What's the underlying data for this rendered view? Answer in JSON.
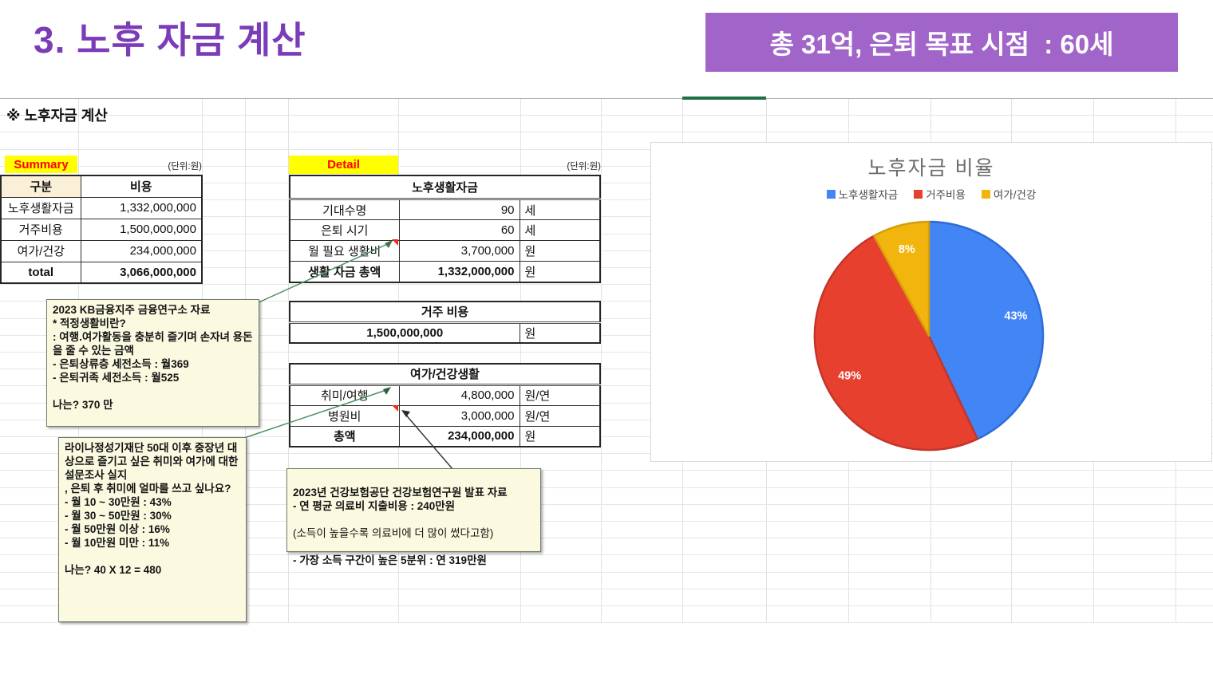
{
  "slide": {
    "title": "3. 노후 자금 계산",
    "banner": "총 31억, 은퇴 목표 시점  : 60세"
  },
  "sheet": {
    "heading": "※ 노후자금 계산",
    "summary": {
      "label": "Summary",
      "unit_note": "(단위:원)",
      "columns": {
        "category": "구분",
        "cost": "비용"
      },
      "rows": [
        {
          "label": "노후생활자금",
          "value": "1,332,000,000"
        },
        {
          "label": "거주비용",
          "value": "1,500,000,000"
        },
        {
          "label": "여가/건강",
          "value": "234,000,000"
        },
        {
          "label": "total",
          "value": "3,066,000,000"
        }
      ]
    },
    "detail": {
      "label": "Detail",
      "unit_note": "(단위:원)",
      "life": {
        "title": "노후생활자금",
        "rows": [
          {
            "label": "기대수명",
            "value": "90",
            "unit": "세"
          },
          {
            "label": "은퇴 시기",
            "value": "60",
            "unit": "세"
          },
          {
            "label": "월 필요 생활비",
            "value": "3,700,000",
            "unit": "원"
          },
          {
            "label": "생활 자금 총액",
            "value": "1,332,000,000",
            "unit": "원"
          }
        ]
      },
      "housing": {
        "title": "거주 비용",
        "value": "1,500,000,000",
        "unit": "원"
      },
      "leisure": {
        "title": "여가/건강생활",
        "rows": [
          {
            "label": "취미/여행",
            "value": "4,800,000",
            "unit": "원/연"
          },
          {
            "label": "병원비",
            "value": "3,000,000",
            "unit": "원/연"
          },
          {
            "label": "총액",
            "value": "234,000,000",
            "unit": "원"
          }
        ]
      }
    },
    "notes": [
      {
        "text": "2023 KB금융지주 금융연구소 자료\n* 적정생활비란?\n: 여행.여가활동을 충분히 즐기며 손자녀 용돈을 줄 수 있는 금액\n- 은퇴상류층 세전소득 : 월369\n- 은퇴귀족 세전소득 : 월525\n\n나는? 370 만"
      },
      {
        "text": "라이나정성기재단 50대 이후 중장년 대상으로 즐기고 싶은 취미와 여가에 대한 설문조사 실지\n, 은퇴 후 취미에 얼마를 쓰고 싶나요?\n- 월 10 ~ 30만원 : 43%\n- 월 30 ~ 50만원 : 30%\n- 월 50만원 이상 : 16%\n- 월 10만원 미만 : 11%\n\n나는? 40 X 12 = 480"
      },
      {
        "text_bold_1": "2023년 건강보험공단 건강보험연구원 발표 자료\n- 연 평균 의료비 지출비용 : 240만원",
        "text_regular": "(소득이 높을수록 의료비에 더 많이 썼다고함)",
        "text_bold_2": "- 가장 소득 구간이 높은 5분위 : 연 319만원"
      }
    ]
  },
  "chart_data": {
    "type": "pie",
    "title": "노후자금 비율",
    "labels": [
      "노후생활자금",
      "거주비용",
      "여가/건강"
    ],
    "values": [
      43,
      49,
      8
    ],
    "data_labels": [
      "43%",
      "49%",
      "8%"
    ],
    "colors": [
      "#4285F4",
      "#E8402F",
      "#F2B50E"
    ],
    "stroke_colors": [
      "#2F6BD8",
      "#C2352A",
      "#D69E06"
    ],
    "legend_position": "top",
    "start_angle_deg": 0,
    "direction": "clockwise"
  },
  "colors": {
    "title_purple": "#7B3CB8",
    "banner_purple": "#A164C9",
    "highlight_yellow": "#FFFF00",
    "highlight_red_text": "#FF0000",
    "header_cream": "#FAF0D7",
    "note_background": "#FBFAE1",
    "selection_green": "#1E7145",
    "comment_indicator_red": "#F02B1D"
  }
}
